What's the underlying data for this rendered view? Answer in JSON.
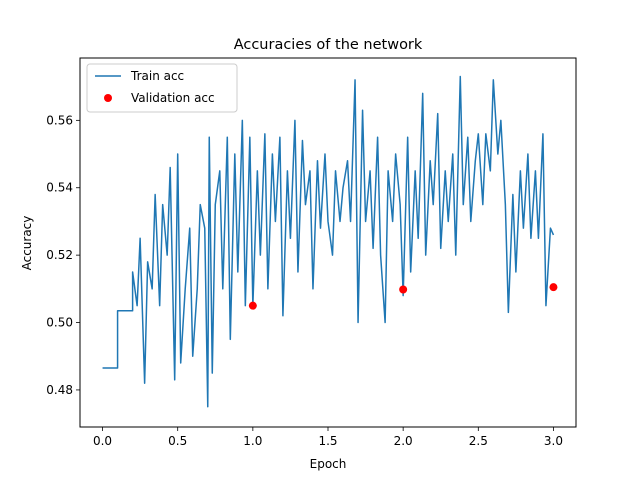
{
  "chart_data": {
    "type": "line",
    "title": "Accuracies of the network",
    "xlabel": "Epoch",
    "ylabel": "Accuracy",
    "xlim": [
      -0.15,
      3.15
    ],
    "ylim": [
      0.469,
      0.5785
    ],
    "xticks": [
      0.0,
      0.5,
      1.0,
      1.5,
      2.0,
      2.5,
      3.0
    ],
    "xtick_labels": [
      "0.0",
      "0.5",
      "1.0",
      "1.5",
      "2.0",
      "2.5",
      "3.0"
    ],
    "yticks": [
      0.48,
      0.5,
      0.52,
      0.54,
      0.56
    ],
    "ytick_labels": [
      "0.48",
      "0.50",
      "0.52",
      "0.54",
      "0.56"
    ],
    "grid": false,
    "legend_position": "top-left",
    "series": [
      {
        "name": "Train acc",
        "kind": "line",
        "color": "#1f77b4",
        "x": [
          0.0,
          0.1,
          0.1,
          0.2,
          0.2,
          0.23,
          0.25,
          0.28,
          0.3,
          0.33,
          0.35,
          0.38,
          0.4,
          0.43,
          0.45,
          0.48,
          0.5,
          0.52,
          0.55,
          0.58,
          0.6,
          0.63,
          0.65,
          0.68,
          0.7,
          0.71,
          0.73,
          0.75,
          0.78,
          0.8,
          0.83,
          0.85,
          0.88,
          0.9,
          0.93,
          0.95,
          0.98,
          1.0,
          1.03,
          1.05,
          1.08,
          1.1,
          1.13,
          1.15,
          1.18,
          1.2,
          1.23,
          1.25,
          1.28,
          1.3,
          1.33,
          1.35,
          1.38,
          1.4,
          1.43,
          1.45,
          1.48,
          1.5,
          1.53,
          1.55,
          1.58,
          1.6,
          1.63,
          1.65,
          1.68,
          1.7,
          1.73,
          1.75,
          1.78,
          1.8,
          1.83,
          1.85,
          1.88,
          1.9,
          1.93,
          1.95,
          1.98,
          2.0,
          2.03,
          2.05,
          2.08,
          2.1,
          2.13,
          2.15,
          2.18,
          2.2,
          2.23,
          2.25,
          2.28,
          2.3,
          2.33,
          2.35,
          2.38,
          2.4,
          2.43,
          2.45,
          2.48,
          2.5,
          2.53,
          2.55,
          2.58,
          2.6,
          2.63,
          2.65,
          2.68,
          2.7,
          2.73,
          2.75,
          2.78,
          2.8,
          2.83,
          2.85,
          2.88,
          2.9,
          2.93,
          2.95,
          2.98,
          3.0
        ],
        "y": [
          0.4865,
          0.4865,
          0.5035,
          0.5035,
          0.515,
          0.505,
          0.525,
          0.482,
          0.518,
          0.51,
          0.538,
          0.505,
          0.535,
          0.52,
          0.546,
          0.483,
          0.55,
          0.488,
          0.51,
          0.528,
          0.49,
          0.51,
          0.535,
          0.528,
          0.475,
          0.555,
          0.485,
          0.535,
          0.545,
          0.51,
          0.555,
          0.495,
          0.55,
          0.515,
          0.56,
          0.505,
          0.555,
          0.505,
          0.545,
          0.52,
          0.556,
          0.51,
          0.55,
          0.53,
          0.555,
          0.502,
          0.545,
          0.525,
          0.56,
          0.515,
          0.554,
          0.535,
          0.545,
          0.51,
          0.548,
          0.528,
          0.55,
          0.53,
          0.52,
          0.545,
          0.53,
          0.54,
          0.548,
          0.53,
          0.572,
          0.5,
          0.563,
          0.53,
          0.545,
          0.522,
          0.555,
          0.52,
          0.5,
          0.545,
          0.53,
          0.55,
          0.535,
          0.508,
          0.555,
          0.515,
          0.545,
          0.525,
          0.568,
          0.52,
          0.548,
          0.535,
          0.562,
          0.522,
          0.545,
          0.53,
          0.55,
          0.52,
          0.573,
          0.535,
          0.555,
          0.53,
          0.548,
          0.556,
          0.535,
          0.556,
          0.545,
          0.572,
          0.55,
          0.56,
          0.535,
          0.503,
          0.538,
          0.515,
          0.545,
          0.528,
          0.55,
          0.525,
          0.545,
          0.525,
          0.556,
          0.505,
          0.528,
          0.526
        ]
      },
      {
        "name": "Validation acc",
        "kind": "scatter",
        "color": "#ff0000",
        "x": [
          1.0,
          2.0,
          3.0
        ],
        "y": [
          0.505,
          0.5098,
          0.5105
        ]
      }
    ]
  }
}
